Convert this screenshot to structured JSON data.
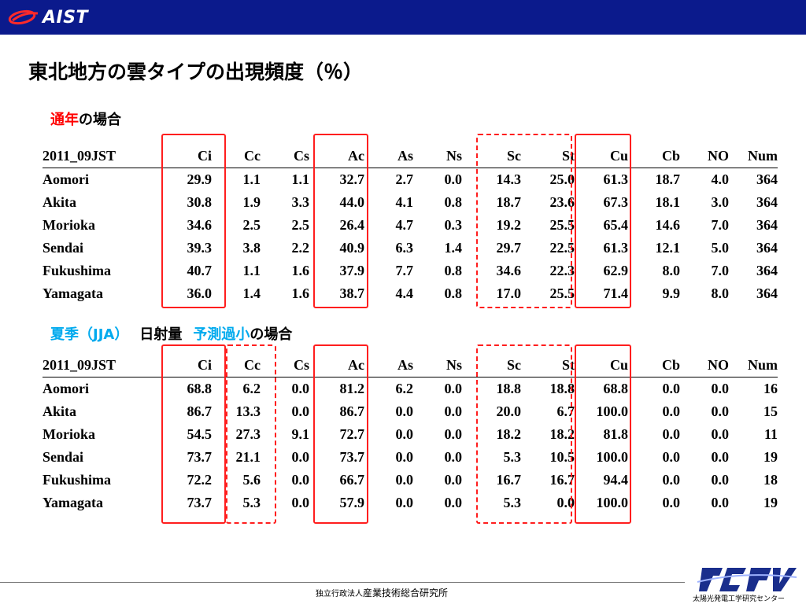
{
  "header": {
    "logo_text": "AIST"
  },
  "title": "東北地方の雲タイプの出現頻度（％）",
  "section1": {
    "highlight": "通年",
    "rest": "の場合"
  },
  "section2": {
    "part1": "夏季（JJA）",
    "part2": "日射量",
    "highlight": "予測過小",
    "rest": "の場合"
  },
  "table1": {
    "headers": [
      "2011_09JST",
      "Ci",
      "Cc",
      "Cs",
      "Ac",
      "As",
      "Ns",
      "Sc",
      "St",
      "Cu",
      "Cb",
      "NO",
      "Num"
    ],
    "rows": [
      [
        "Aomori",
        "29.9",
        "1.1",
        "1.1",
        "32.7",
        "2.7",
        "0.0",
        "14.3",
        "25.0",
        "61.3",
        "18.7",
        "4.0",
        "364"
      ],
      [
        "Akita",
        "30.8",
        "1.9",
        "3.3",
        "44.0",
        "4.1",
        "0.8",
        "18.7",
        "23.6",
        "67.3",
        "18.1",
        "3.0",
        "364"
      ],
      [
        "Morioka",
        "34.6",
        "2.5",
        "2.5",
        "26.4",
        "4.7",
        "0.3",
        "19.2",
        "25.5",
        "65.4",
        "14.6",
        "7.0",
        "364"
      ],
      [
        "Sendai",
        "39.3",
        "3.8",
        "2.2",
        "40.9",
        "6.3",
        "1.4",
        "29.7",
        "22.5",
        "61.3",
        "12.1",
        "5.0",
        "364"
      ],
      [
        "Fukushima",
        "40.7",
        "1.1",
        "1.6",
        "37.9",
        "7.7",
        "0.8",
        "34.6",
        "22.3",
        "62.9",
        "8.0",
        "7.0",
        "364"
      ],
      [
        "Yamagata",
        "36.0",
        "1.4",
        "1.6",
        "38.7",
        "4.4",
        "0.8",
        "17.0",
        "25.5",
        "71.4",
        "9.9",
        "8.0",
        "364"
      ]
    ]
  },
  "table2": {
    "headers": [
      "2011_09JST",
      "Ci",
      "Cc",
      "Cs",
      "Ac",
      "As",
      "Ns",
      "Sc",
      "St",
      "Cu",
      "Cb",
      "NO",
      "Num"
    ],
    "rows": [
      [
        "Aomori",
        "68.8",
        "6.2",
        "0.0",
        "81.2",
        "6.2",
        "0.0",
        "18.8",
        "18.8",
        "68.8",
        "0.0",
        "0.0",
        "16"
      ],
      [
        "Akita",
        "86.7",
        "13.3",
        "0.0",
        "86.7",
        "0.0",
        "0.0",
        "20.0",
        "6.7",
        "100.0",
        "0.0",
        "0.0",
        "15"
      ],
      [
        "Morioka",
        "54.5",
        "27.3",
        "9.1",
        "72.7",
        "0.0",
        "0.0",
        "18.2",
        "18.2",
        "81.8",
        "0.0",
        "0.0",
        "11"
      ],
      [
        "Sendai",
        "73.7",
        "21.1",
        "0.0",
        "73.7",
        "0.0",
        "0.0",
        "5.3",
        "10.5",
        "100.0",
        "0.0",
        "0.0",
        "19"
      ],
      [
        "Fukushima",
        "72.2",
        "5.6",
        "0.0",
        "66.7",
        "0.0",
        "0.0",
        "16.7",
        "16.7",
        "94.4",
        "0.0",
        "0.0",
        "18"
      ],
      [
        "Yamagata",
        "73.7",
        "5.3",
        "0.0",
        "57.9",
        "0.0",
        "0.0",
        "5.3",
        "0.0",
        "100.0",
        "0.0",
        "0.0",
        "19"
      ]
    ]
  },
  "footer": {
    "org_small": "独立行政法人",
    "org": "産業技術総合研究所",
    "center_logo": "rcpvt",
    "center_name": "太陽光発電工学研究センター"
  },
  "colors": {
    "header_bg": "#0b1a8c",
    "highlight_red": "#ff0000",
    "highlight_cyan": "#00aaee",
    "box": "#ff1e1e"
  }
}
